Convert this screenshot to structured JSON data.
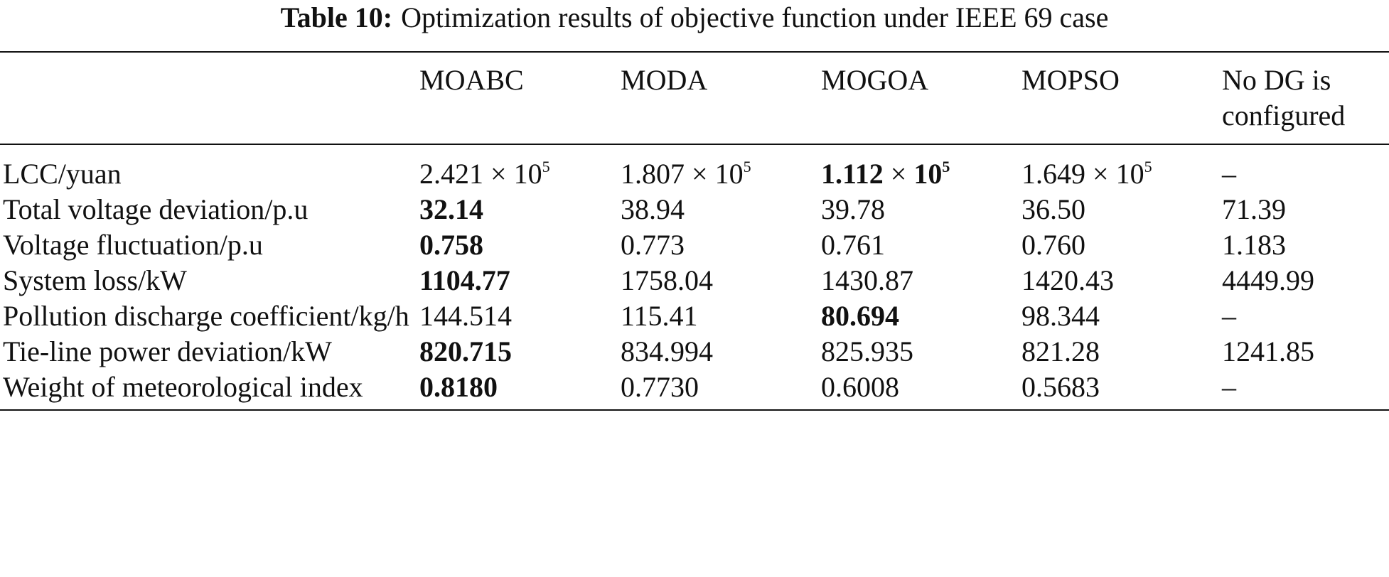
{
  "caption": {
    "label": "Table 10:",
    "text": "Optimization results of objective function under IEEE 69 case"
  },
  "table": {
    "headers": [
      "",
      "MOABC",
      "MODA",
      "MOGOA",
      "MOPSO",
      "No DG is configured"
    ],
    "rows": [
      {
        "label": "LCC/yuan",
        "cells": [
          {
            "mantissa": "2.421",
            "times": "×",
            "base": "10",
            "exp": "5",
            "bold": false
          },
          {
            "mantissa": "1.807",
            "times": "×",
            "base": "10",
            "exp": "5",
            "bold": false
          },
          {
            "mantissa": "1.112",
            "times": "×",
            "base": "10",
            "exp": "5",
            "bold": true
          },
          {
            "mantissa": "1.649",
            "times": "×",
            "base": "10",
            "exp": "5",
            "bold": false
          },
          {
            "text": "–",
            "bold": false
          }
        ]
      },
      {
        "label": "Total voltage deviation/p.u",
        "cells": [
          {
            "text": "32.14",
            "bold": true
          },
          {
            "text": "38.94",
            "bold": false
          },
          {
            "text": "39.78",
            "bold": false
          },
          {
            "text": "36.50",
            "bold": false
          },
          {
            "text": "71.39",
            "bold": false
          }
        ]
      },
      {
        "label": "Voltage fluctuation/p.u",
        "cells": [
          {
            "text": "0.758",
            "bold": true
          },
          {
            "text": "0.773",
            "bold": false
          },
          {
            "text": "0.761",
            "bold": false
          },
          {
            "text": "0.760",
            "bold": false
          },
          {
            "text": "1.183",
            "bold": false
          }
        ]
      },
      {
        "label": "System loss/kW",
        "cells": [
          {
            "text": "1104.77",
            "bold": true
          },
          {
            "text": "1758.04",
            "bold": false
          },
          {
            "text": "1430.87",
            "bold": false
          },
          {
            "text": "1420.43",
            "bold": false
          },
          {
            "text": "4449.99",
            "bold": false
          }
        ]
      },
      {
        "label": "Pollution discharge coefficient/kg/h",
        "cells": [
          {
            "text": "144.514",
            "bold": false
          },
          {
            "text": "115.41",
            "bold": false
          },
          {
            "text": "80.694",
            "bold": true
          },
          {
            "text": "98.344",
            "bold": false
          },
          {
            "text": "–",
            "bold": false
          }
        ]
      },
      {
        "label": "Tie-line power deviation/kW",
        "cells": [
          {
            "text": "820.715",
            "bold": true
          },
          {
            "text": "834.994",
            "bold": false
          },
          {
            "text": "825.935",
            "bold": false
          },
          {
            "text": "821.28",
            "bold": false
          },
          {
            "text": "1241.85",
            "bold": false
          }
        ]
      },
      {
        "label": "Weight of meteorological index",
        "cells": [
          {
            "text": "0.8180",
            "bold": true
          },
          {
            "text": "0.7730",
            "bold": false
          },
          {
            "text": "0.6008",
            "bold": false
          },
          {
            "text": "0.5683",
            "bold": false
          },
          {
            "text": "–",
            "bold": false
          }
        ]
      }
    ]
  }
}
